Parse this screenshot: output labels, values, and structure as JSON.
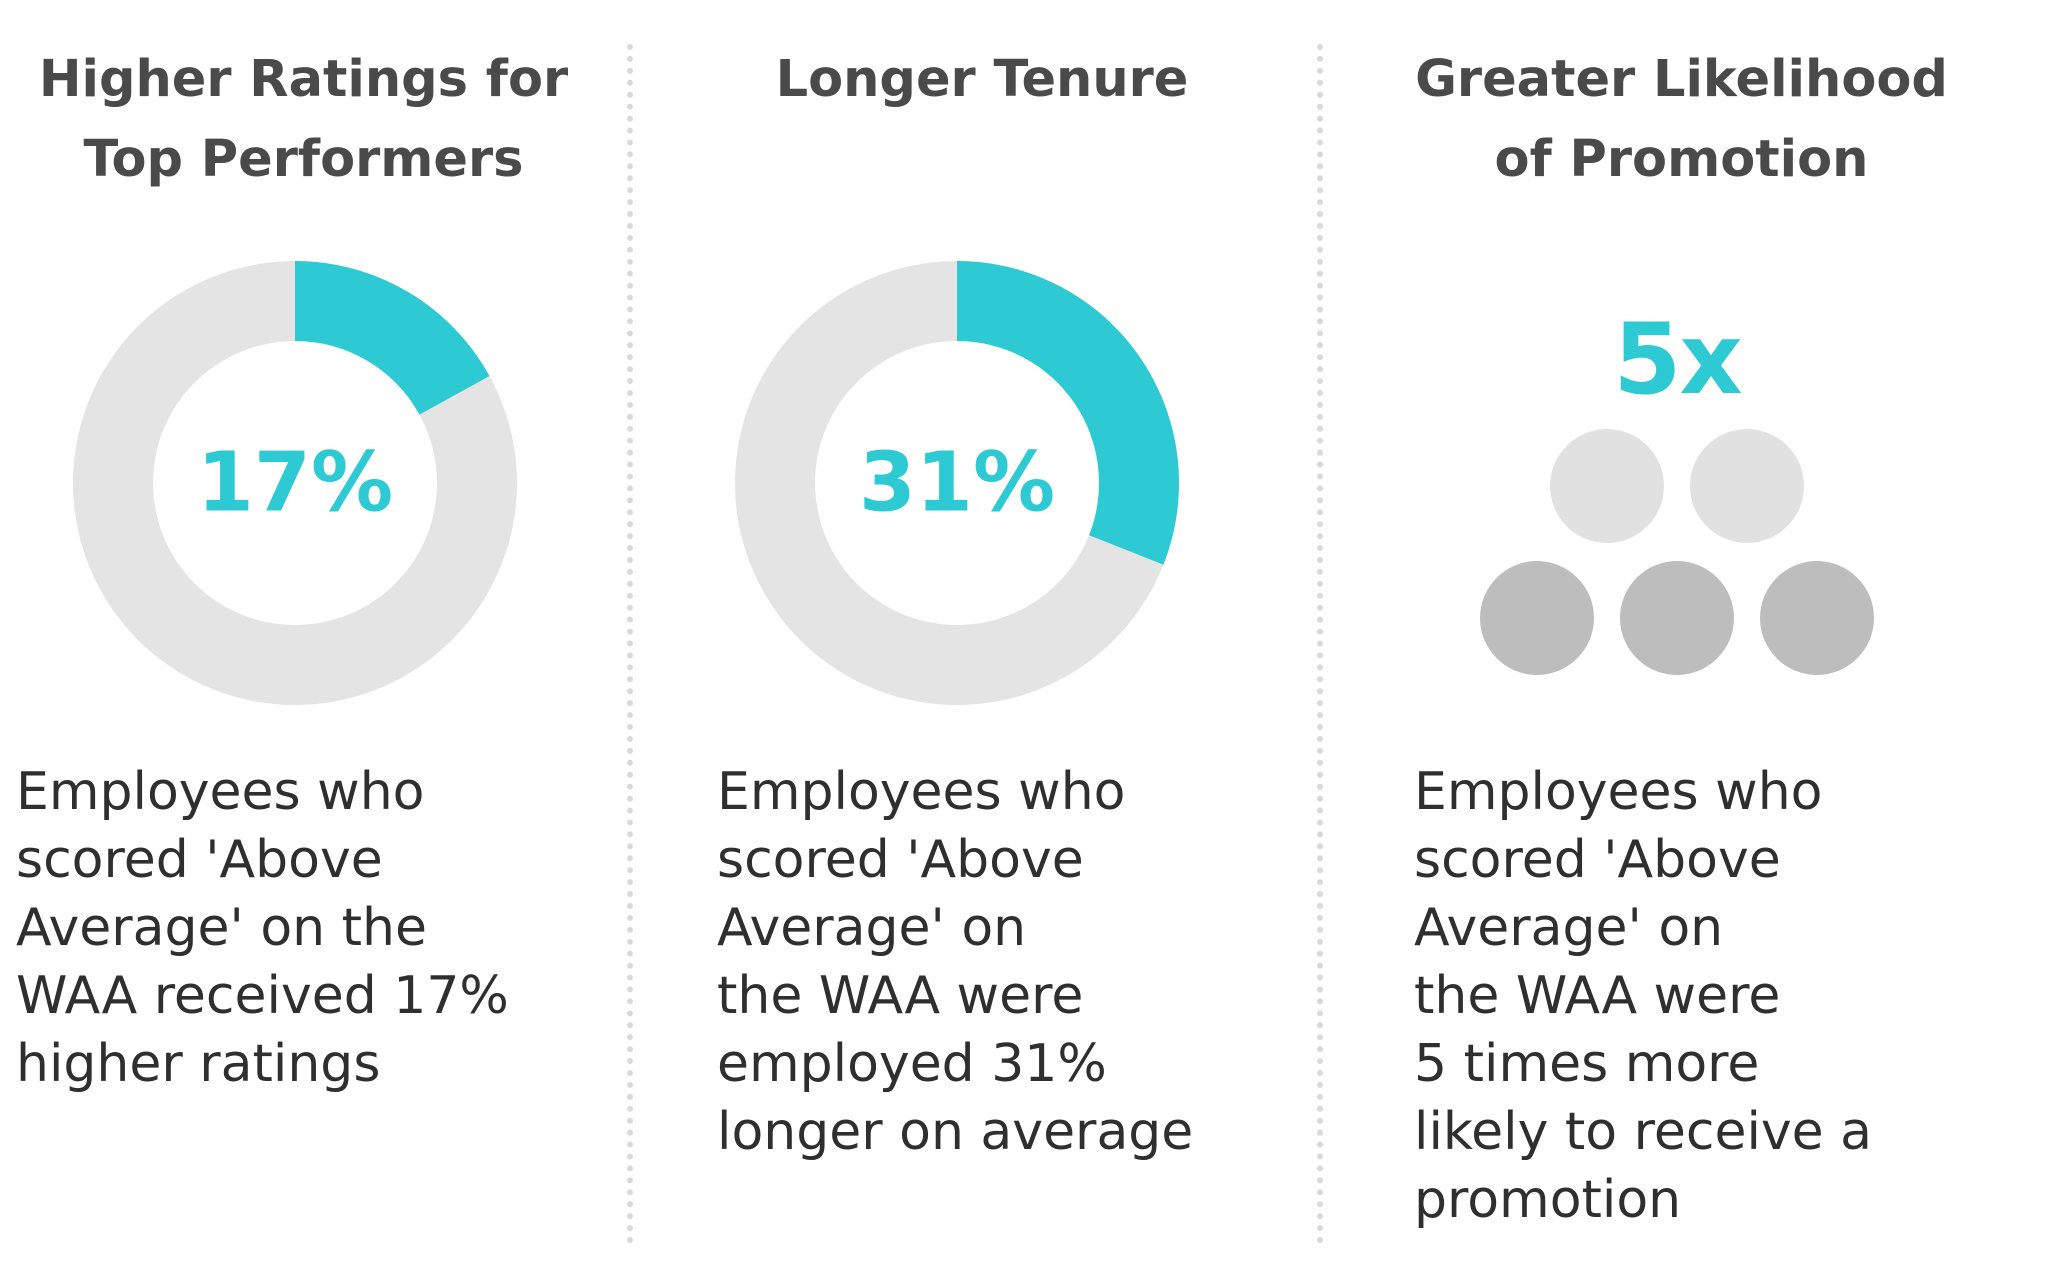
{
  "colors": {
    "accent": "#2ecad3",
    "track": "#e4e4e4",
    "dot_light": "#e1e1e1",
    "dot_dark": "#bdbdbd",
    "heading_text": "#4a4a4a",
    "body_text": "#2f2f2f",
    "divider": "#d9d9d9"
  },
  "panels": [
    {
      "heading": "Higher Ratings for\nTop Performers",
      "value_label": "17%",
      "description": "Employees who\nscored 'Above\nAverage' on the\nWAA received 17%\nhigher ratings"
    },
    {
      "heading": "Longer Tenure",
      "value_label": "31%",
      "description": "Employees who\nscored 'Above\nAverage' on\nthe WAA were\nemployed 31%\nlonger on average"
    },
    {
      "heading": "Greater Likelihood\nof Promotion",
      "value_label": "5x",
      "description": "Employees who\nscored 'Above\nAverage' on\nthe WAA were\n5 times more\nlikely to receive a\npromotion"
    }
  ],
  "chart_data": [
    {
      "type": "pie",
      "variant": "donut",
      "title": "Higher Ratings for Top Performers",
      "center_label": "17%",
      "slices": [
        {
          "value": 17,
          "color": "#2ecad3"
        },
        {
          "value": 83,
          "color": "#e4e4e4"
        }
      ]
    },
    {
      "type": "pie",
      "variant": "donut",
      "title": "Longer Tenure",
      "center_label": "31%",
      "slices": [
        {
          "value": 31,
          "color": "#2ecad3"
        },
        {
          "value": 69,
          "color": "#e4e4e4"
        }
      ]
    },
    {
      "type": "pictogram",
      "title": "Greater Likelihood of Promotion",
      "center_label": "5x",
      "rows": [
        {
          "count": 2,
          "color": "#e1e1e1"
        },
        {
          "count": 3,
          "color": "#bdbdbd"
        }
      ]
    }
  ]
}
